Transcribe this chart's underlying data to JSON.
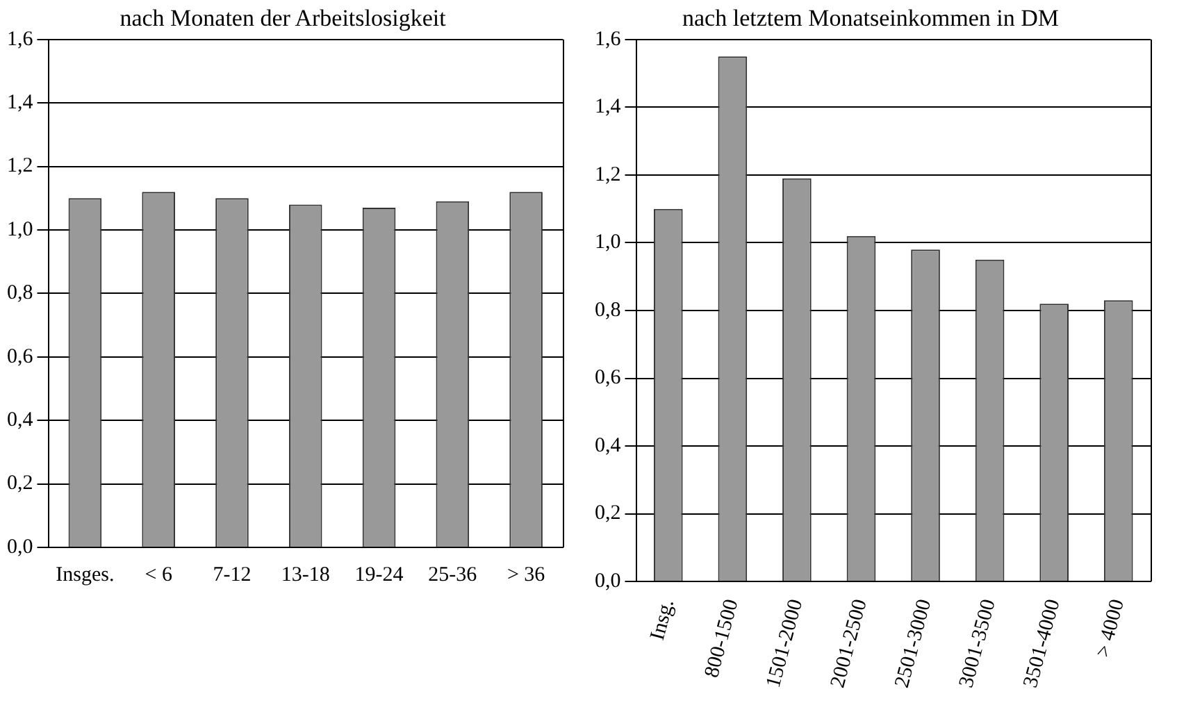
{
  "chart_data": [
    {
      "type": "bar",
      "title": "nach Monaten der Arbeitslosigkeit",
      "categories": [
        "Insges.",
        "< 6",
        "7-12",
        "13-18",
        "19-24",
        "25-36",
        "> 36"
      ],
      "values": [
        1.1,
        1.12,
        1.1,
        1.08,
        1.07,
        1.09,
        1.12
      ],
      "color": "#999999",
      "ylim": [
        0,
        1.6
      ],
      "yticks": [
        {
          "value": 0,
          "label": "0,0"
        },
        {
          "value": 0.2,
          "label": "0,2"
        },
        {
          "value": 0.4,
          "label": "0,4"
        },
        {
          "value": 0.6,
          "label": "0,6"
        },
        {
          "value": 0.8,
          "label": "0,8"
        },
        {
          "value": 1.0,
          "label": "1,0"
        },
        {
          "value": 1.2,
          "label": "1,2"
        },
        {
          "value": 1.4,
          "label": "1,4"
        },
        {
          "value": 1.6,
          "label": "1,6"
        }
      ],
      "grid": "y",
      "legend": false
    },
    {
      "type": "bar",
      "title": "nach letztem Monatseinkommen in DM",
      "categories": [
        "Insg.",
        "800-1500",
        "1501-2000",
        "2001-2500",
        "2501-3000",
        "3001-3500",
        "3501-4000",
        "> 4000"
      ],
      "values": [
        1.1,
        1.55,
        1.19,
        1.02,
        0.98,
        0.95,
        0.82,
        0.83
      ],
      "color": "#999999",
      "ylim": [
        0,
        1.6
      ],
      "yticks": [
        {
          "value": 0,
          "label": "0,0"
        },
        {
          "value": 0.2,
          "label": "0,2"
        },
        {
          "value": 0.4,
          "label": "0,4"
        },
        {
          "value": 0.6,
          "label": "0,6"
        },
        {
          "value": 0.8,
          "label": "0,8"
        },
        {
          "value": 1.0,
          "label": "1,0"
        },
        {
          "value": 1.2,
          "label": "1,2"
        },
        {
          "value": 1.4,
          "label": "1,4"
        },
        {
          "value": 1.6,
          "label": "1,6"
        }
      ],
      "grid": "y",
      "legend": false
    }
  ]
}
